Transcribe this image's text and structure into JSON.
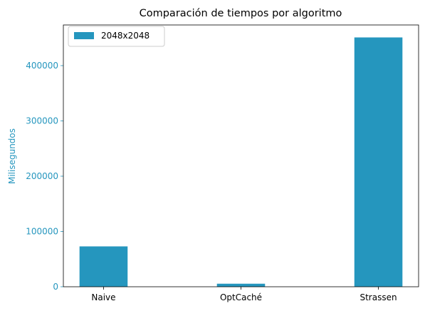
{
  "chart_data": {
    "type": "bar",
    "title": "Comparación de tiempos por algoritmo",
    "xlabel": "",
    "ylabel": "Milisegundos",
    "categories": [
      "Naive",
      "OptCaché",
      "Strassen"
    ],
    "series": [
      {
        "name": "2048x2048",
        "values": [
          73000,
          5500,
          451000
        ],
        "color": "#2596be"
      }
    ],
    "yticks": [
      0,
      100000,
      200000,
      300000,
      400000
    ],
    "ytick_labels": [
      "0",
      "100000",
      "200000",
      "300000",
      "400000"
    ],
    "ylim": [
      0,
      473550
    ],
    "grid": false,
    "legend_position": "upper-left",
    "axis_color": "#2596be"
  }
}
